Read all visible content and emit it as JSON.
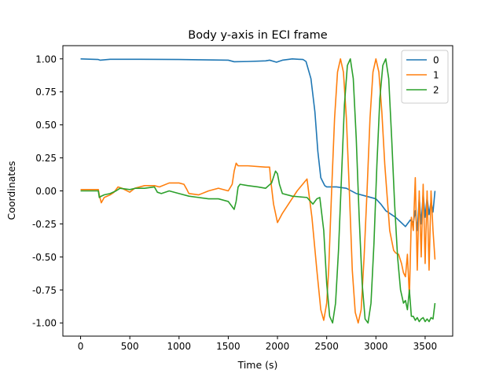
{
  "chart_data": {
    "type": "line",
    "title": "Body y-axis in ECI frame",
    "xlabel": "Time (s)",
    "ylabel": "Coordinates",
    "xlim": [
      -180,
      3780
    ],
    "ylim": [
      -1.1,
      1.1
    ],
    "x_ticks": [
      0,
      500,
      1000,
      1500,
      2000,
      2500,
      3000,
      3500
    ],
    "y_ticks": [
      -1.0,
      -0.75,
      -0.5,
      -0.25,
      0.0,
      0.25,
      0.5,
      0.75,
      1.0
    ],
    "grid": false,
    "legend_position": "top-right",
    "series": [
      {
        "name": "0",
        "color": "#1f77b4",
        "points": [
          [
            0,
            1.0
          ],
          [
            180,
            0.995
          ],
          [
            200,
            0.99
          ],
          [
            300,
            0.997
          ],
          [
            600,
            0.997
          ],
          [
            1000,
            0.995
          ],
          [
            1200,
            0.993
          ],
          [
            1500,
            0.99
          ],
          [
            1560,
            0.978
          ],
          [
            1700,
            0.98
          ],
          [
            1880,
            0.985
          ],
          [
            1920,
            0.99
          ],
          [
            1990,
            0.975
          ],
          [
            2050,
            0.99
          ],
          [
            2150,
            1.0
          ],
          [
            2260,
            0.995
          ],
          [
            2290,
            0.98
          ],
          [
            2340,
            0.85
          ],
          [
            2380,
            0.6
          ],
          [
            2410,
            0.3
          ],
          [
            2440,
            0.1
          ],
          [
            2480,
            0.04
          ],
          [
            2500,
            0.03
          ],
          [
            2600,
            0.03
          ],
          [
            2700,
            0.02
          ],
          [
            2800,
            -0.02
          ],
          [
            2900,
            -0.04
          ],
          [
            3000,
            -0.06
          ],
          [
            3050,
            -0.1
          ],
          [
            3100,
            -0.15
          ],
          [
            3200,
            -0.2
          ],
          [
            3300,
            -0.27
          ],
          [
            3350,
            -0.22
          ],
          [
            3380,
            -0.24
          ],
          [
            3400,
            -0.15
          ],
          [
            3420,
            -0.3
          ],
          [
            3440,
            -0.05
          ],
          [
            3460,
            -0.25
          ],
          [
            3480,
            -0.02
          ],
          [
            3500,
            -0.2
          ],
          [
            3520,
            -0.05
          ],
          [
            3540,
            -0.18
          ],
          [
            3560,
            -0.08
          ],
          [
            3580,
            -0.16
          ],
          [
            3600,
            0.0
          ]
        ]
      },
      {
        "name": "1",
        "color": "#ff7f0e",
        "points": [
          [
            0,
            0.01
          ],
          [
            150,
            0.01
          ],
          [
            180,
            0.01
          ],
          [
            190,
            -0.03
          ],
          [
            210,
            -0.09
          ],
          [
            240,
            -0.05
          ],
          [
            300,
            -0.03
          ],
          [
            340,
            -0.01
          ],
          [
            380,
            0.03
          ],
          [
            420,
            0.02
          ],
          [
            500,
            -0.01
          ],
          [
            550,
            0.02
          ],
          [
            650,
            0.04
          ],
          [
            750,
            0.04
          ],
          [
            800,
            0.03
          ],
          [
            900,
            0.06
          ],
          [
            1000,
            0.06
          ],
          [
            1050,
            0.05
          ],
          [
            1080,
            0.01
          ],
          [
            1100,
            -0.02
          ],
          [
            1200,
            -0.03
          ],
          [
            1300,
            0.0
          ],
          [
            1400,
            0.02
          ],
          [
            1500,
            0.0
          ],
          [
            1540,
            0.05
          ],
          [
            1560,
            0.15
          ],
          [
            1580,
            0.21
          ],
          [
            1600,
            0.19
          ],
          [
            1700,
            0.19
          ],
          [
            1880,
            0.18
          ],
          [
            1920,
            0.18
          ],
          [
            1930,
            0.09
          ],
          [
            1960,
            -0.1
          ],
          [
            2000,
            -0.24
          ],
          [
            2050,
            -0.17
          ],
          [
            2200,
            0.0
          ],
          [
            2300,
            0.09
          ],
          [
            2350,
            -0.2
          ],
          [
            2400,
            -0.6
          ],
          [
            2440,
            -0.9
          ],
          [
            2470,
            -0.98
          ],
          [
            2500,
            -0.85
          ],
          [
            2520,
            -0.6
          ],
          [
            2550,
            0.0
          ],
          [
            2580,
            0.55
          ],
          [
            2610,
            0.9
          ],
          [
            2640,
            1.0
          ],
          [
            2670,
            0.9
          ],
          [
            2700,
            0.55
          ],
          [
            2730,
            0.0
          ],
          [
            2760,
            -0.6
          ],
          [
            2790,
            -0.92
          ],
          [
            2820,
            -1.0
          ],
          [
            2850,
            -0.9
          ],
          [
            2880,
            -0.5
          ],
          [
            2910,
            0.0
          ],
          [
            2940,
            0.55
          ],
          [
            2970,
            0.9
          ],
          [
            3000,
            1.0
          ],
          [
            3030,
            0.9
          ],
          [
            3060,
            0.6
          ],
          [
            3090,
            0.2
          ],
          [
            3120,
            -0.1
          ],
          [
            3140,
            -0.3
          ],
          [
            3180,
            -0.45
          ],
          [
            3200,
            -0.47
          ],
          [
            3230,
            -0.48
          ],
          [
            3260,
            -0.55
          ],
          [
            3280,
            -0.62
          ],
          [
            3300,
            -0.65
          ],
          [
            3320,
            -0.48
          ],
          [
            3340,
            -0.8
          ],
          [
            3360,
            -0.2
          ],
          [
            3380,
            -0.3
          ],
          [
            3400,
            0.1
          ],
          [
            3420,
            -0.6
          ],
          [
            3440,
            0.0
          ],
          [
            3460,
            -0.5
          ],
          [
            3480,
            0.05
          ],
          [
            3500,
            -0.55
          ],
          [
            3520,
            0.0
          ],
          [
            3540,
            -0.6
          ],
          [
            3560,
            0.0
          ],
          [
            3580,
            -0.3
          ],
          [
            3600,
            -0.52
          ]
        ]
      },
      {
        "name": "2",
        "color": "#2ca02c",
        "points": [
          [
            0,
            0.0
          ],
          [
            150,
            0.0
          ],
          [
            180,
            0.0
          ],
          [
            190,
            -0.05
          ],
          [
            210,
            -0.04
          ],
          [
            240,
            -0.03
          ],
          [
            300,
            -0.02
          ],
          [
            360,
            0.0
          ],
          [
            400,
            0.02
          ],
          [
            500,
            0.01
          ],
          [
            560,
            0.02
          ],
          [
            650,
            0.02
          ],
          [
            750,
            0.03
          ],
          [
            780,
            -0.01
          ],
          [
            820,
            -0.02
          ],
          [
            900,
            0.0
          ],
          [
            1000,
            -0.02
          ],
          [
            1100,
            -0.04
          ],
          [
            1200,
            -0.05
          ],
          [
            1300,
            -0.06
          ],
          [
            1400,
            -0.06
          ],
          [
            1500,
            -0.08
          ],
          [
            1540,
            -0.12
          ],
          [
            1560,
            -0.14
          ],
          [
            1580,
            -0.08
          ],
          [
            1600,
            0.03
          ],
          [
            1620,
            0.05
          ],
          [
            1700,
            0.04
          ],
          [
            1800,
            0.03
          ],
          [
            1880,
            0.02
          ],
          [
            1940,
            0.06
          ],
          [
            1980,
            0.15
          ],
          [
            2000,
            0.13
          ],
          [
            2020,
            0.05
          ],
          [
            2050,
            -0.02
          ],
          [
            2150,
            -0.04
          ],
          [
            2300,
            -0.05
          ],
          [
            2360,
            -0.1
          ],
          [
            2400,
            -0.06
          ],
          [
            2430,
            -0.05
          ],
          [
            2470,
            -0.3
          ],
          [
            2500,
            -0.7
          ],
          [
            2530,
            -0.95
          ],
          [
            2560,
            -1.0
          ],
          [
            2590,
            -0.85
          ],
          [
            2620,
            -0.45
          ],
          [
            2650,
            0.1
          ],
          [
            2680,
            0.65
          ],
          [
            2710,
            0.95
          ],
          [
            2740,
            1.0
          ],
          [
            2770,
            0.85
          ],
          [
            2800,
            0.4
          ],
          [
            2830,
            -0.2
          ],
          [
            2860,
            -0.7
          ],
          [
            2890,
            -0.97
          ],
          [
            2920,
            -1.0
          ],
          [
            2950,
            -0.85
          ],
          [
            2980,
            -0.4
          ],
          [
            3010,
            0.2
          ],
          [
            3040,
            0.7
          ],
          [
            3070,
            0.95
          ],
          [
            3100,
            1.0
          ],
          [
            3130,
            0.85
          ],
          [
            3160,
            0.4
          ],
          [
            3190,
            -0.1
          ],
          [
            3220,
            -0.5
          ],
          [
            3250,
            -0.75
          ],
          [
            3280,
            -0.85
          ],
          [
            3300,
            -0.83
          ],
          [
            3320,
            -0.9
          ],
          [
            3340,
            -0.75
          ],
          [
            3360,
            -0.95
          ],
          [
            3380,
            -0.95
          ],
          [
            3400,
            -0.98
          ],
          [
            3420,
            -0.96
          ],
          [
            3440,
            -0.99
          ],
          [
            3460,
            -0.97
          ],
          [
            3480,
            -0.96
          ],
          [
            3500,
            -0.99
          ],
          [
            3520,
            -0.97
          ],
          [
            3540,
            -0.99
          ],
          [
            3560,
            -0.96
          ],
          [
            3580,
            -0.97
          ],
          [
            3600,
            -0.85
          ]
        ]
      }
    ]
  }
}
